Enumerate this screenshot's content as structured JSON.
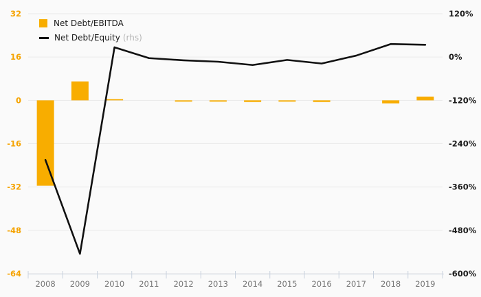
{
  "chart_data": {
    "type": "bar+line combo",
    "categories": [
      "2008",
      "2009",
      "2010",
      "2011",
      "2012",
      "2013",
      "2014",
      "2015",
      "2016",
      "2017",
      "2018",
      "2019"
    ],
    "series": [
      {
        "name": "Net Debt/EBITDA",
        "type": "bar",
        "axis": "left",
        "color": "#f8ad00",
        "values": [
          -31.5,
          7,
          0.3,
          0,
          -0.3,
          -0.3,
          -0.6,
          -0.4,
          -0.6,
          0,
          -1.1,
          1.4
        ]
      },
      {
        "name": "Net Debt/Equity",
        "type": "line",
        "axis": "right",
        "axis_note": "(rhs)",
        "color": "#111111",
        "values": [
          -285,
          -545,
          27,
          -3,
          -9,
          -13,
          -22,
          -8,
          -18,
          4,
          36,
          34
        ]
      }
    ],
    "left_axis": {
      "ticks": [
        32,
        16,
        0,
        -16,
        -32,
        -48,
        -64
      ],
      "range": [
        -64,
        32
      ],
      "label_color": "#f5a300"
    },
    "right_axis": {
      "ticks": [
        "120%",
        "0%",
        "-120%",
        "-240%",
        "-360%",
        "-480%",
        "-600%"
      ],
      "tick_values": [
        120,
        0,
        -120,
        -240,
        -360,
        -480,
        -600
      ],
      "range": [
        -600,
        120
      ],
      "label_color": "#1d1d1d"
    },
    "x_axis": {
      "label_color": "#747474",
      "line_color": "#c9d2de"
    },
    "grid": {
      "on": true,
      "color": "#e9e9e9"
    },
    "legend_position": "top-left",
    "title": ""
  },
  "legend": {
    "items": [
      {
        "label": "Net Debt/EBITDA"
      },
      {
        "label": "Net Debt/Equity",
        "suffix": "(rhs)"
      }
    ]
  }
}
